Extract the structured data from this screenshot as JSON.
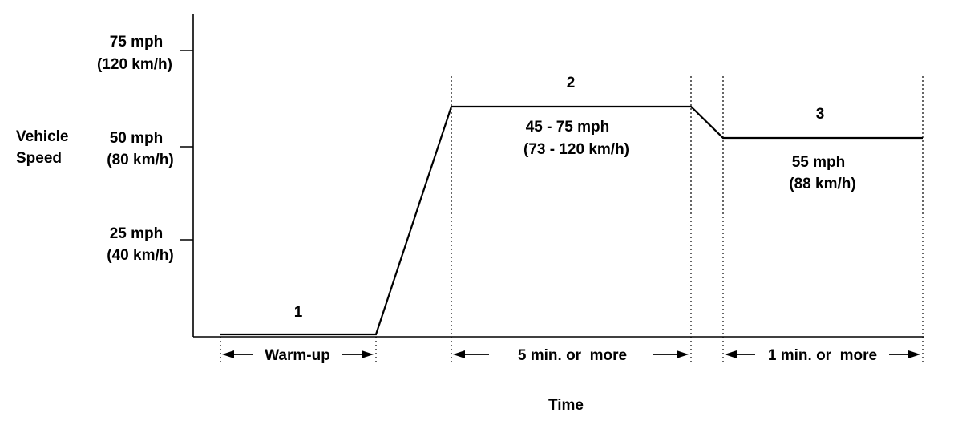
{
  "y_axis": {
    "title_line1": "Vehicle",
    "title_line2": "Speed",
    "ticks": [
      {
        "line1": "75 mph",
        "line2": "(120 km/h)"
      },
      {
        "line1": "50 mph",
        "line2": "(80 km/h)"
      },
      {
        "line1": "25 mph",
        "line2": "(40 km/h)"
      }
    ]
  },
  "x_axis": {
    "title": "Time"
  },
  "phases": [
    {
      "number": "1",
      "duration": "Warm-up"
    },
    {
      "number": "2",
      "speed_line1": "45 - 75 mph",
      "speed_line2": "(73 - 120 km/h)",
      "duration": "5 min. or  more"
    },
    {
      "number": "3",
      "speed_line1": "55 mph",
      "speed_line2": "(88 km/h)",
      "duration": "1 min. or  more"
    }
  ]
}
